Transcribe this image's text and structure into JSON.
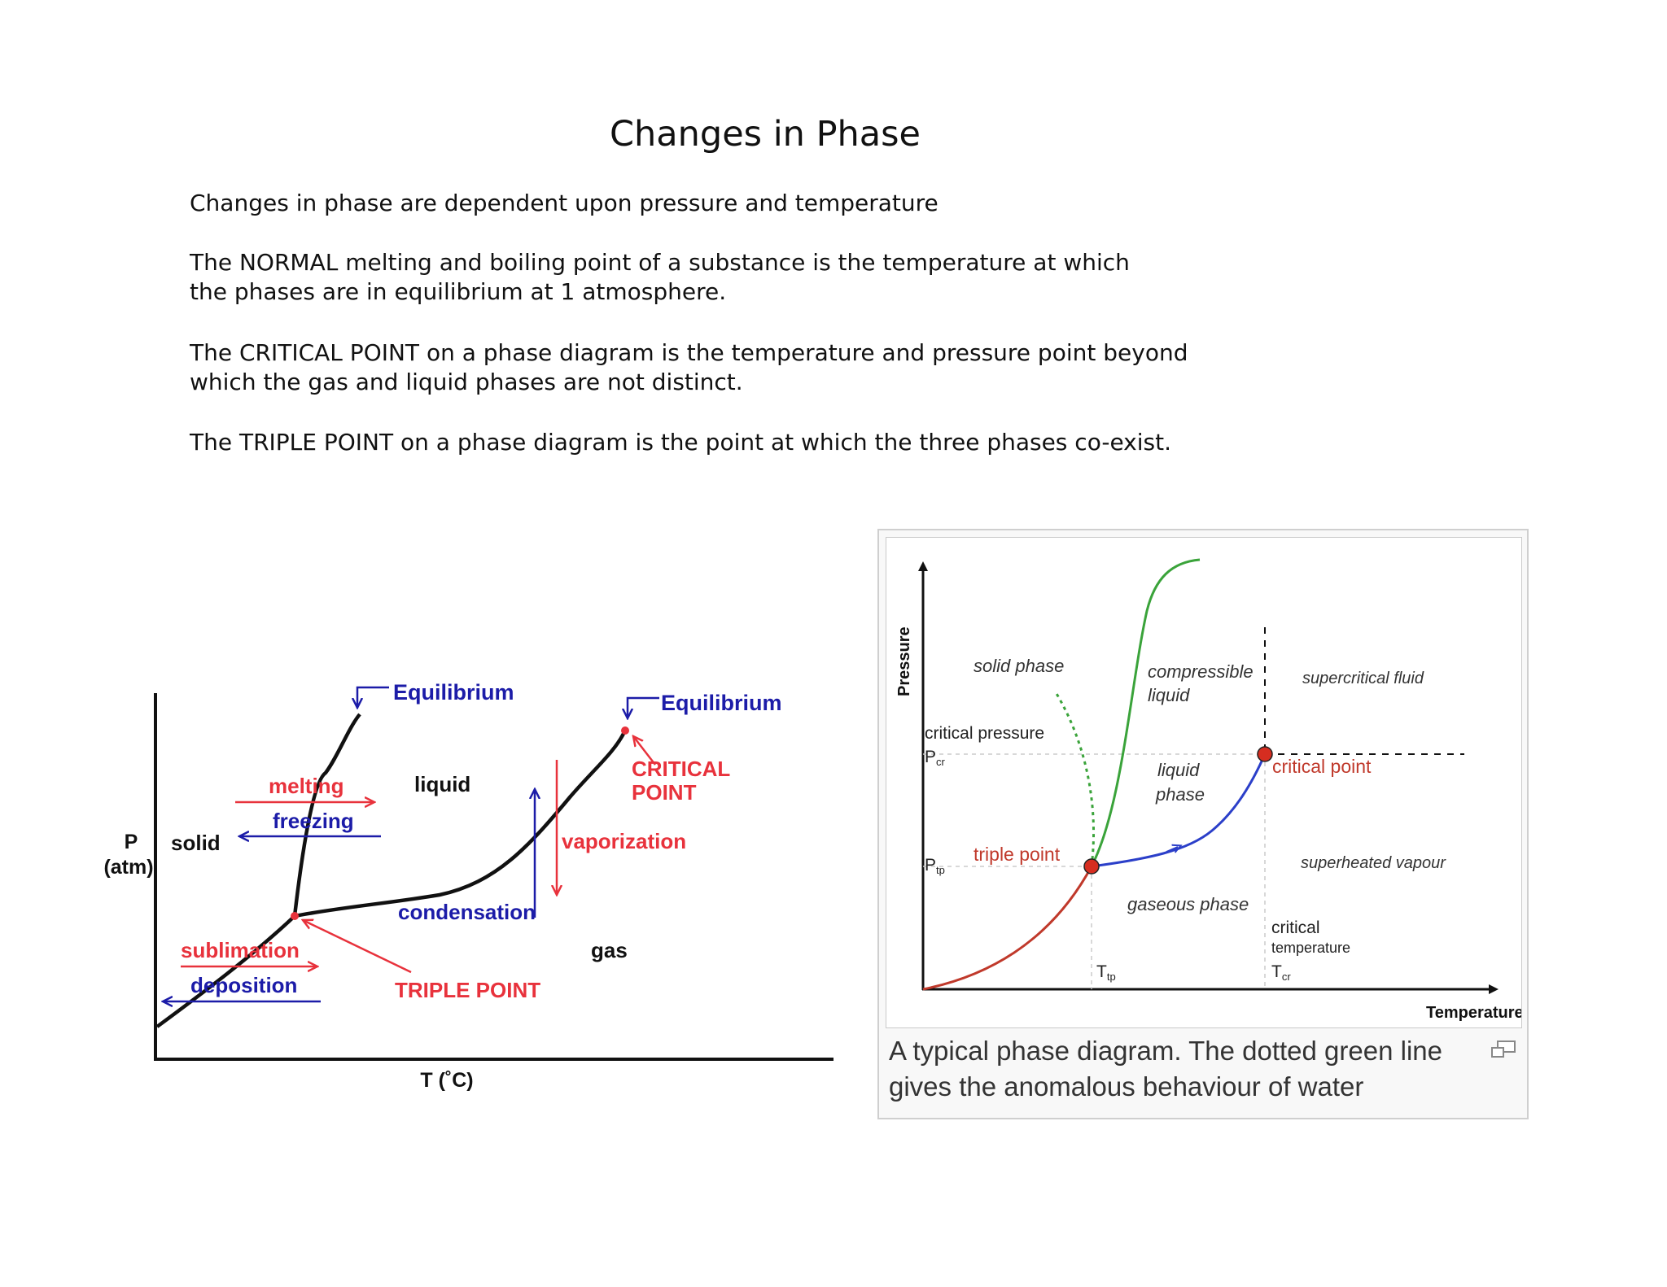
{
  "page": {
    "title": "Changes in Phase",
    "paragraphs": [
      "Changes in phase are dependent upon pressure and temperature",
      "The NORMAL melting and boiling point of a substance is the temperature at which\nthe phases are in equilibrium at 1 atmosphere.",
      "The CRITICAL POINT on a phase diagram is the temperature and pressure point beyond\nwhich the gas and liquid phases are not distinct.",
      "The TRIPLE POINT on a phase diagram is the point at which the three phases co-exist."
    ]
  },
  "left_diagram": {
    "ylabel_p": "P",
    "ylabel_unit": "(atm)",
    "xlabel": "T (˚C)",
    "equilibrium_1": "Equilibrium",
    "equilibrium_2": "Equilibrium",
    "melting": "melting",
    "freezing": "freezing",
    "solid": "solid",
    "liquid": "liquid",
    "gas": "gas",
    "sublimation": "sublimation",
    "deposition": "deposition",
    "triple_point": "TRIPLE POINT",
    "condensation": "condensation",
    "vaporization": "vaporization",
    "critical_1": "CRITICAL",
    "critical_2": "POINT",
    "colors": {
      "red": "#e8323c",
      "blue": "#1c1ca8",
      "curve": "#111111"
    }
  },
  "right_figure": {
    "ylabel": "Pressure",
    "xlabel": "Temperature",
    "solid_phase": "solid phase",
    "compressible_1": "compressible",
    "compressible_2": "liquid",
    "supercritical": "supercritical fluid",
    "critical_pressure": "critical pressure",
    "p_cr": "P",
    "p_cr_sub": "cr",
    "liquid_1": "liquid",
    "liquid_2": "phase",
    "critical_point": "critical point",
    "p_tp": "P",
    "p_tp_sub": "tp",
    "triple_point": "triple point",
    "superheated": "superheated vapour",
    "gaseous": "gaseous phase",
    "critical_t1": "critical",
    "critical_t2": "temperature",
    "t_tp": "T",
    "t_tp_sub": "tp",
    "t_cr": "T",
    "t_cr_sub": "cr",
    "caption": "A typical phase diagram. The dotted green line\ngives the anomalous behaviour of water",
    "icon": "enlarge-icon",
    "colors": {
      "sublimation": "#c0392b",
      "fusion": "#3aa33a",
      "vaporization": "#2b3fc9",
      "point": "#d62d20"
    }
  }
}
